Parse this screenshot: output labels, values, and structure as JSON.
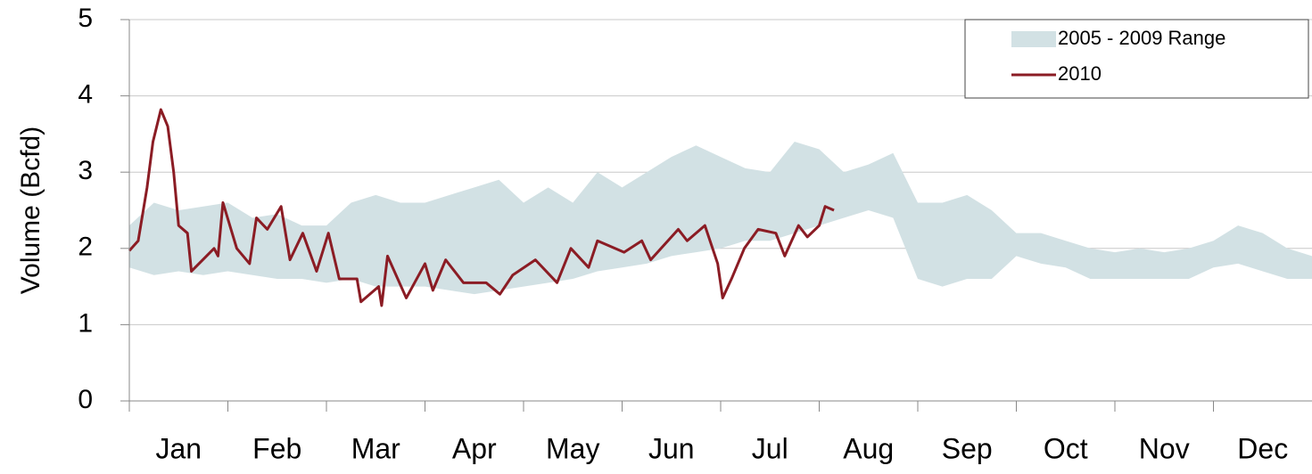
{
  "chart_data": {
    "type": "line",
    "y_label": "Volume (Bcfd)",
    "categories": [
      "Jan",
      "Feb",
      "Mar",
      "Apr",
      "May",
      "Jun",
      "Jul",
      "Aug",
      "Sep",
      "Oct",
      "Nov",
      "Dec"
    ],
    "xlim": [
      0,
      12
    ],
    "xticks": [
      0,
      1,
      2,
      3,
      4,
      5,
      6,
      7,
      8,
      9,
      10,
      11
    ],
    "ylim": [
      0,
      5
    ],
    "yticks": [
      0,
      1,
      2,
      3,
      4,
      5
    ],
    "grid": true,
    "legend": "upper right",
    "series": [
      {
        "name": "2005 - 2009 Range",
        "kind": "band",
        "color": "#d2e1e4",
        "x": [
          0,
          0.25,
          0.5,
          0.75,
          1,
          1.25,
          1.5,
          1.75,
          2,
          2.25,
          2.5,
          2.75,
          3,
          3.25,
          3.5,
          3.75,
          4,
          4.25,
          4.5,
          4.75,
          5,
          5.25,
          5.5,
          5.75,
          6,
          6.25,
          6.5,
          6.75,
          7,
          7.25,
          7.5,
          7.75,
          8,
          8.25,
          8.5,
          8.75,
          9,
          9.25,
          9.5,
          9.75,
          10,
          10.25,
          10.5,
          10.75,
          11,
          11.25,
          11.5,
          11.75,
          12
        ],
        "low": [
          1.75,
          1.65,
          1.7,
          1.65,
          1.7,
          1.65,
          1.6,
          1.6,
          1.55,
          1.6,
          1.5,
          1.5,
          1.5,
          1.45,
          1.4,
          1.45,
          1.5,
          1.55,
          1.6,
          1.7,
          1.75,
          1.8,
          1.9,
          1.95,
          2.0,
          2.1,
          2.1,
          2.2,
          2.3,
          2.4,
          2.5,
          2.4,
          1.6,
          1.5,
          1.6,
          1.6,
          1.9,
          1.8,
          1.75,
          1.6,
          1.6,
          1.6,
          1.6,
          1.6,
          1.75,
          1.8,
          1.7,
          1.6,
          1.6
        ],
        "high": [
          2.3,
          2.6,
          2.5,
          2.55,
          2.6,
          2.4,
          2.45,
          2.3,
          2.3,
          2.6,
          2.7,
          2.6,
          2.6,
          2.7,
          2.8,
          2.9,
          2.6,
          2.8,
          2.6,
          3.0,
          2.8,
          3.0,
          3.2,
          3.35,
          3.2,
          3.05,
          3.0,
          3.4,
          3.3,
          3.0,
          3.1,
          3.25,
          2.6,
          2.6,
          2.7,
          2.5,
          2.2,
          2.2,
          2.1,
          2.0,
          1.95,
          2.0,
          1.95,
          2.0,
          2.1,
          2.3,
          2.2,
          2.0,
          1.9
        ]
      },
      {
        "name": "2010",
        "kind": "line",
        "color": "#8b1c24",
        "x": [
          0,
          0.09,
          0.18,
          0.24,
          0.32,
          0.39,
          0.45,
          0.5,
          0.59,
          0.63,
          0.86,
          0.9,
          0.95,
          1.09,
          1.22,
          1.29,
          1.4,
          1.54,
          1.63,
          1.76,
          1.9,
          2.02,
          2.13,
          2.31,
          2.35,
          2.53,
          2.56,
          2.62,
          2.81,
          3.0,
          3.08,
          3.21,
          3.39,
          3.62,
          3.76,
          3.89,
          4.12,
          4.34,
          4.48,
          4.66,
          4.75,
          5.02,
          5.2,
          5.29,
          5.57,
          5.66,
          5.84,
          5.97,
          6.02,
          6.11,
          6.24,
          6.38,
          6.56,
          6.65,
          6.79,
          6.88,
          7.0,
          7.06,
          7.15
        ],
        "values": [
          1.97,
          2.1,
          2.8,
          3.4,
          3.82,
          3.6,
          3.0,
          2.3,
          2.2,
          1.7,
          2.0,
          1.9,
          2.6,
          2.0,
          1.8,
          2.4,
          2.25,
          2.55,
          1.85,
          2.2,
          1.7,
          2.2,
          1.6,
          1.6,
          1.3,
          1.5,
          1.25,
          1.9,
          1.35,
          1.8,
          1.45,
          1.85,
          1.55,
          1.55,
          1.4,
          1.65,
          1.85,
          1.55,
          2.0,
          1.75,
          2.1,
          1.95,
          2.1,
          1.85,
          2.25,
          2.1,
          2.3,
          1.8,
          1.35,
          1.6,
          2.0,
          2.25,
          2.2,
          1.9,
          2.3,
          2.15,
          2.3,
          2.55,
          2.5
        ]
      }
    ]
  }
}
